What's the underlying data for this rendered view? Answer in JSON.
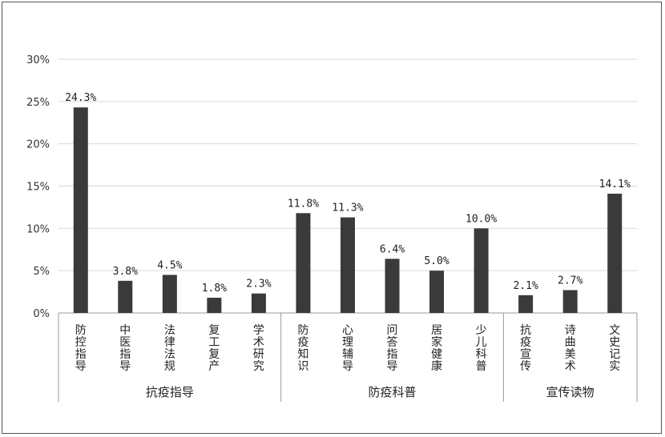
{
  "chart_data": {
    "type": "bar",
    "title": "",
    "xlabel": "",
    "ylabel": "",
    "ylim": [
      0,
      30
    ],
    "yticks": [
      "0%",
      "5%",
      "10%",
      "15%",
      "20%",
      "25%",
      "30%"
    ],
    "grid": true,
    "legend": "none",
    "bar_color": "#3a3a3a",
    "groups": [
      {
        "name": "抗疫指导",
        "categories": [
          "防控指导",
          "中医指导",
          "法律法规",
          "复工复产",
          "学术研究"
        ],
        "values": [
          24.3,
          3.8,
          4.5,
          1.8,
          2.3
        ],
        "labels": [
          "24.3%",
          "3.8%",
          "4.5%",
          "1.8%",
          "2.3%"
        ]
      },
      {
        "name": "防疫科普",
        "categories": [
          "防疫知识",
          "心理辅导",
          "问答指导",
          "居家健康",
          "少儿科普"
        ],
        "values": [
          11.8,
          11.3,
          6.4,
          5.0,
          10.0
        ],
        "labels": [
          "11.8%",
          "11.3%",
          "6.4%",
          "5.0%",
          "10.0%"
        ]
      },
      {
        "name": "宣传读物",
        "categories": [
          "抗疫宣传",
          "诗曲美术",
          "文史记实"
        ],
        "values": [
          2.1,
          2.7,
          14.1
        ],
        "labels": [
          "2.1%",
          "2.7%",
          "14.1%"
        ]
      }
    ]
  }
}
